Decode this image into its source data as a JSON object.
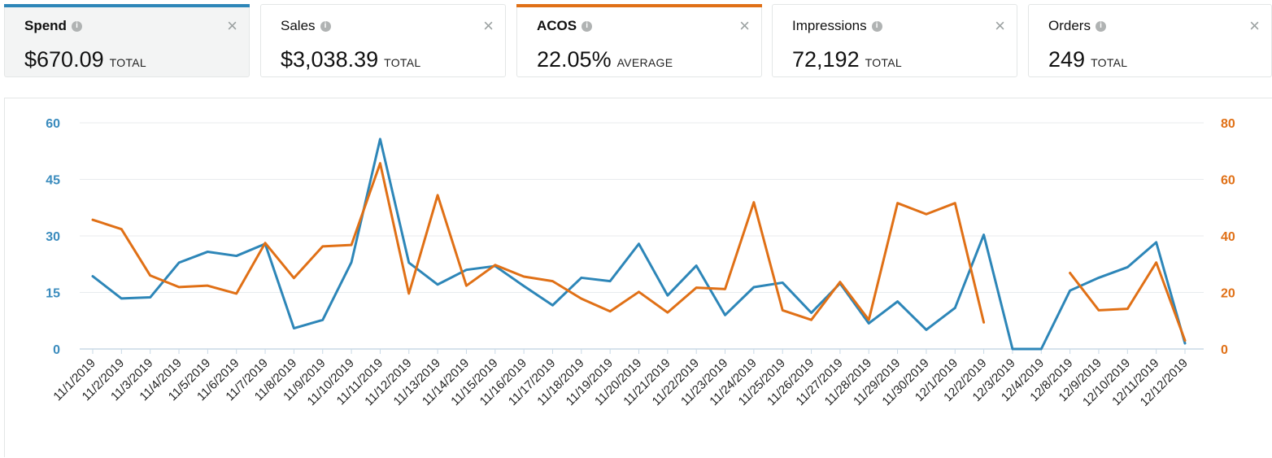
{
  "metric_cards": [
    {
      "label": "Spend",
      "value": "$670.09",
      "unit": "TOTAL",
      "accent": "#2d86b8",
      "bold": true
    },
    {
      "label": "Sales",
      "value": "$3,038.39",
      "unit": "TOTAL",
      "accent": "",
      "bold": false
    },
    {
      "label": "ACOS",
      "value": "22.05%",
      "unit": "AVERAGE",
      "accent": "#e07016",
      "bold": true
    },
    {
      "label": "Impressions",
      "value": "72,192",
      "unit": "TOTAL",
      "accent": "",
      "bold": false
    },
    {
      "label": "Orders",
      "value": "249",
      "unit": "TOTAL",
      "accent": "",
      "bold": false
    }
  ],
  "close_glyph": "×",
  "info_glyph": "i",
  "chart_data": {
    "type": "line",
    "categories": [
      "11/1/2019",
      "11/2/2019",
      "11/3/2019",
      "11/4/2019",
      "11/5/2019",
      "11/6/2019",
      "11/7/2019",
      "11/8/2019",
      "11/9/2019",
      "11/10/2019",
      "11/11/2019",
      "11/12/2019",
      "11/13/2019",
      "11/14/2019",
      "11/15/2019",
      "11/16/2019",
      "11/17/2019",
      "11/18/2019",
      "11/19/2019",
      "11/20/2019",
      "11/21/2019",
      "11/22/2019",
      "11/23/2019",
      "11/24/2019",
      "11/25/2019",
      "11/26/2019",
      "11/27/2019",
      "11/28/2019",
      "11/29/2019",
      "11/30/2019",
      "12/1/2019",
      "12/2/2019",
      "12/3/2019",
      "12/4/2019",
      "12/8/2019",
      "12/9/2019",
      "12/10/2019",
      "12/11/2019",
      "12/12/2019"
    ],
    "left_axis": {
      "ticks": [
        0,
        15,
        30,
        45,
        60
      ],
      "ylim": [
        0,
        60
      ],
      "color": "#3a8bbd"
    },
    "right_axis": {
      "ticks": [
        0,
        20,
        40,
        60,
        80
      ],
      "ylim": [
        0,
        80
      ],
      "color": "#e07016"
    },
    "series": [
      {
        "axis": "left",
        "color": "#2d86b8",
        "values": [
          19.3,
          13.4,
          13.7,
          22.9,
          25.8,
          24.7,
          27.9,
          5.5,
          7.7,
          23.0,
          55.7,
          22.9,
          17.1,
          21.0,
          22.0,
          16.7,
          11.6,
          18.9,
          18.0,
          27.9,
          14.2,
          22.1,
          9.0,
          16.4,
          17.6,
          9.6,
          17.4,
          6.8,
          12.6,
          5.1,
          10.9,
          30.3,
          0,
          0,
          15.5,
          18.9,
          21.7,
          28.3,
          1.5
        ]
      },
      {
        "axis": "right",
        "color": "#e07016",
        "values": [
          45.7,
          42.4,
          26.0,
          21.9,
          22.4,
          19.6,
          37.5,
          25.1,
          36.3,
          36.8,
          65.7,
          19.6,
          54.4,
          22.4,
          29.7,
          25.6,
          24.0,
          17.8,
          13.3,
          20.2,
          12.9,
          21.7,
          21.2,
          51.9,
          13.7,
          10.3,
          23.7,
          10.3,
          51.6,
          47.7,
          51.6,
          9.4,
          null,
          null,
          26.9,
          13.7,
          14.2,
          30.6,
          3.0
        ]
      }
    ]
  }
}
